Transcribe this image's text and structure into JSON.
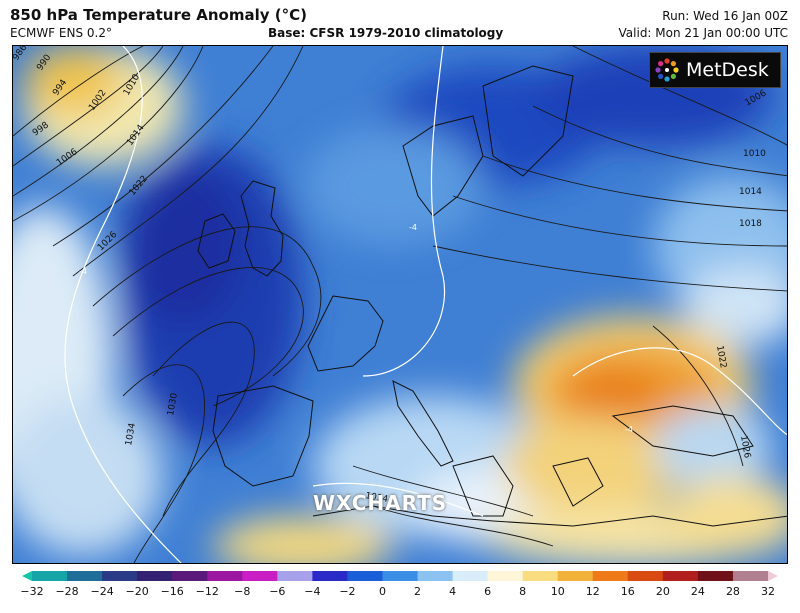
{
  "header": {
    "title": "850 hPa Temperature Anomaly (°C)",
    "model": "ECMWF ENS 0.2°",
    "base": "Base: CFSR 1979-2010 climatology",
    "run": "Run: Wed 16 Jan 00Z",
    "valid": "Valid: Mon 21 Jan 00:00 UTC"
  },
  "logo": {
    "text": "MetDesk"
  },
  "watermark": "WXCHARTS",
  "isobar_labels": [
    "986",
    "990",
    "994",
    "998",
    "1002",
    "1006",
    "1010",
    "1014",
    "1022",
    "1026",
    "1030",
    "1034",
    "1014",
    "1010",
    "1014",
    "1018",
    "1022",
    "1026",
    "1006",
    "1010"
  ],
  "anomaly_label": "-4",
  "colorbar": {
    "ticks": [
      "−32",
      "−28",
      "−24",
      "−20",
      "−16",
      "−12",
      "−8",
      "−6",
      "−4",
      "−2",
      "0",
      "2",
      "4",
      "6",
      "8",
      "10",
      "12",
      "16",
      "20",
      "24",
      "28",
      "32"
    ],
    "colors": [
      "#17c6a8",
      "#15a5a7",
      "#1f6e9a",
      "#2a3a86",
      "#332272",
      "#5a1a7a",
      "#9a18a0",
      "#c81ec4",
      "#a8a0e8",
      "#2a2ac8",
      "#1a5fd8",
      "#3a8ee6",
      "#8cc2f2",
      "#d8ecfa",
      "#fff6d8",
      "#f8dc80",
      "#f2b23a",
      "#ee7a1a",
      "#d84a10",
      "#b01e1e",
      "#701018",
      "#b08090",
      "#f0c8d8"
    ]
  }
}
